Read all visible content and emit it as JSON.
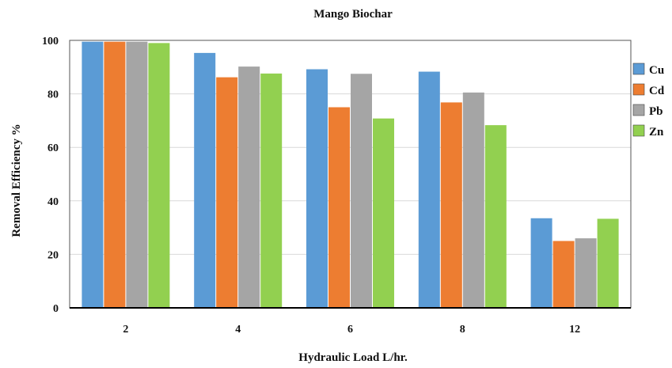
{
  "chart_data": {
    "type": "bar",
    "title": "Mango Biochar",
    "xlabel": "Hydraulic Load L/hr.",
    "ylabel": "Removal Efficiency %",
    "categories": [
      "2",
      "4",
      "6",
      "8",
      "12"
    ],
    "ylim": [
      0,
      100
    ],
    "yticks": [
      "0",
      "20",
      "40",
      "60",
      "80",
      "100"
    ],
    "grid": "horizontal",
    "legend_position": "right",
    "series": [
      {
        "name": "Cu",
        "color": "#5B9BD5",
        "values": [
          99.5,
          95.3,
          89.2,
          88.3,
          33.5
        ]
      },
      {
        "name": "Cd",
        "color": "#ED7D31",
        "values": [
          99.5,
          86.2,
          75.0,
          76.8,
          25.0
        ]
      },
      {
        "name": "Pb",
        "color": "#A5A5A5",
        "values": [
          99.5,
          90.2,
          87.5,
          80.5,
          26.0
        ]
      },
      {
        "name": "Zn",
        "color": "#92D050",
        "values": [
          99.0,
          87.6,
          70.8,
          68.3,
          33.3
        ]
      }
    ]
  }
}
